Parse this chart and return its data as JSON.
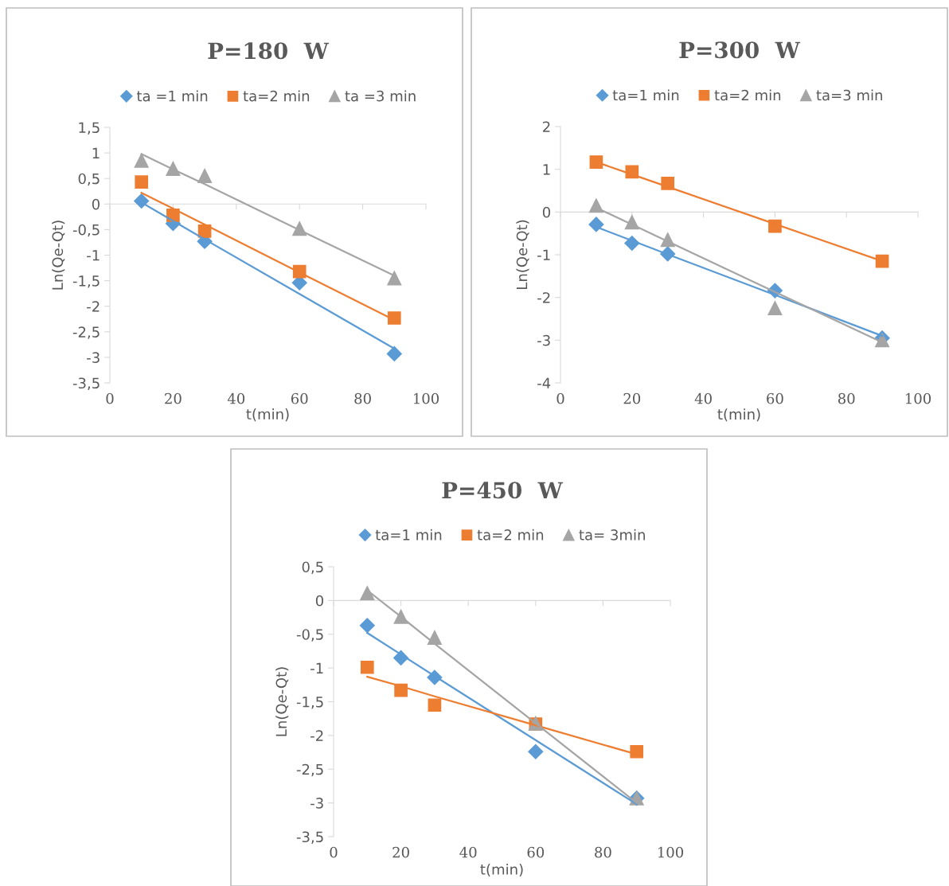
{
  "chart_data": [
    {
      "type": "scatter",
      "title": "P=180  W",
      "xlabel": "t(min)",
      "ylabel": "Ln(Qe-Qt)",
      "legend": "top",
      "xlim": [
        0,
        100
      ],
      "xticks": [
        0,
        20,
        40,
        60,
        80,
        100
      ],
      "ylim": [
        -3.5,
        1.5
      ],
      "yticks": [
        {
          "value": -3.5,
          "label": "-3,5"
        },
        -3,
        {
          "value": -2.5,
          "label": "-2,5"
        },
        -2,
        {
          "value": -1.5,
          "label": "-1,5"
        },
        -1,
        {
          "value": -0.5,
          "label": "-0,5"
        },
        0,
        {
          "value": 0.5,
          "label": "0,5"
        },
        1,
        {
          "value": 1.5,
          "label": "1,5"
        }
      ],
      "x": [
        10,
        20,
        30,
        60,
        90
      ],
      "series": [
        {
          "name": "ta =1 min",
          "color": "#5b9bd5",
          "marker": "diamond",
          "values": [
            0.06,
            -0.38,
            -0.73,
            -1.54,
            -2.93
          ]
        },
        {
          "name": "ta=2 min",
          "color": "#ed7d31",
          "marker": "square",
          "values": [
            0.43,
            -0.22,
            -0.53,
            -1.32,
            -2.23
          ]
        },
        {
          "name": "ta =3 min",
          "color": "#a5a5a5",
          "marker": "triangle",
          "values": [
            0.85,
            0.69,
            0.55,
            -0.48,
            -1.45
          ]
        },
        {
          "type": "line",
          "color": "#5b9bd5",
          "values": [
            0.03,
            -0.33,
            -0.69,
            -1.76,
            -2.83
          ]
        },
        {
          "type": "line",
          "color": "#ed7d31",
          "values": [
            0.22,
            -0.09,
            -0.4,
            -1.34,
            -2.27
          ]
        },
        {
          "type": "line",
          "color": "#a5a5a5",
          "values": [
            0.98,
            0.68,
            0.39,
            -0.51,
            -1.4
          ]
        }
      ]
    },
    {
      "type": "scatter",
      "title": "P=300  W",
      "xlabel": "t(min)",
      "ylabel": "Ln(Qe-Qt)",
      "legend": "top",
      "xlim": [
        0,
        100
      ],
      "xticks": [
        0,
        20,
        40,
        60,
        80,
        100
      ],
      "ylim": [
        -4,
        2
      ],
      "yticks": [
        -4,
        -3,
        -2,
        -1,
        0,
        1,
        2
      ],
      "x": [
        10,
        20,
        30,
        60,
        90
      ],
      "series": [
        {
          "name": "ta=1 min",
          "color": "#5b9bd5",
          "marker": "diamond",
          "values": [
            -0.29,
            -0.73,
            -0.98,
            -1.84,
            -2.95
          ]
        },
        {
          "name": "ta=2 min",
          "color": "#ed7d31",
          "marker": "square",
          "values": [
            1.17,
            0.94,
            0.67,
            -0.33,
            -1.15
          ]
        },
        {
          "name": "ta=3 min",
          "color": "#a5a5a5",
          "marker": "triangle",
          "values": [
            0.15,
            -0.24,
            -0.65,
            -2.25,
            -3.0
          ]
        },
        {
          "type": "line",
          "color": "#5b9bd5",
          "values": [
            -0.35,
            -0.67,
            -0.99,
            -1.94,
            -2.9
          ]
        },
        {
          "type": "line",
          "color": "#ed7d31",
          "values": [
            1.17,
            0.88,
            0.59,
            -0.28,
            -1.15
          ]
        },
        {
          "type": "line",
          "color": "#a5a5a5",
          "values": [
            0.1,
            -0.29,
            -0.69,
            -1.87,
            -3.05
          ]
        }
      ]
    },
    {
      "type": "scatter",
      "title": "P=450  W",
      "xlabel": "t(min)",
      "ylabel": "Ln(Qe-Qt)",
      "legend": "top",
      "xlim": [
        0,
        100
      ],
      "xticks": [
        0,
        20,
        40,
        60,
        80,
        100
      ],
      "ylim": [
        -3.5,
        0.5
      ],
      "yticks": [
        {
          "value": -3.5,
          "label": "-3,5"
        },
        -3,
        {
          "value": -2.5,
          "label": "-2,5"
        },
        -2,
        {
          "value": -1.5,
          "label": "-1,5"
        },
        -1,
        {
          "value": -0.5,
          "label": "-0,5"
        },
        0,
        {
          "value": 0.5,
          "label": "0,5"
        }
      ],
      "x": [
        10,
        20,
        30,
        60,
        90
      ],
      "series": [
        {
          "name": "ta=1 min",
          "color": "#5b9bd5",
          "marker": "diamond",
          "values": [
            -0.37,
            -0.85,
            -1.14,
            -2.24,
            -2.93
          ]
        },
        {
          "name": "ta=2 min",
          "color": "#ed7d31",
          "marker": "square",
          "values": [
            -0.99,
            -1.33,
            -1.55,
            -1.83,
            -2.24
          ]
        },
        {
          "name": "ta= 3min",
          "color": "#a5a5a5",
          "marker": "triangle",
          "values": [
            0.11,
            -0.24,
            -0.55,
            -1.82,
            -2.93
          ]
        },
        {
          "type": "line",
          "color": "#5b9bd5",
          "values": [
            -0.48,
            -0.8,
            -1.12,
            -2.07,
            -3.02
          ]
        },
        {
          "type": "line",
          "color": "#ed7d31",
          "values": [
            -1.13,
            -1.27,
            -1.42,
            -1.85,
            -2.28
          ]
        },
        {
          "type": "line",
          "color": "#a5a5a5",
          "values": [
            0.15,
            -0.24,
            -0.64,
            -1.82,
            -3.0
          ]
        }
      ]
    }
  ]
}
